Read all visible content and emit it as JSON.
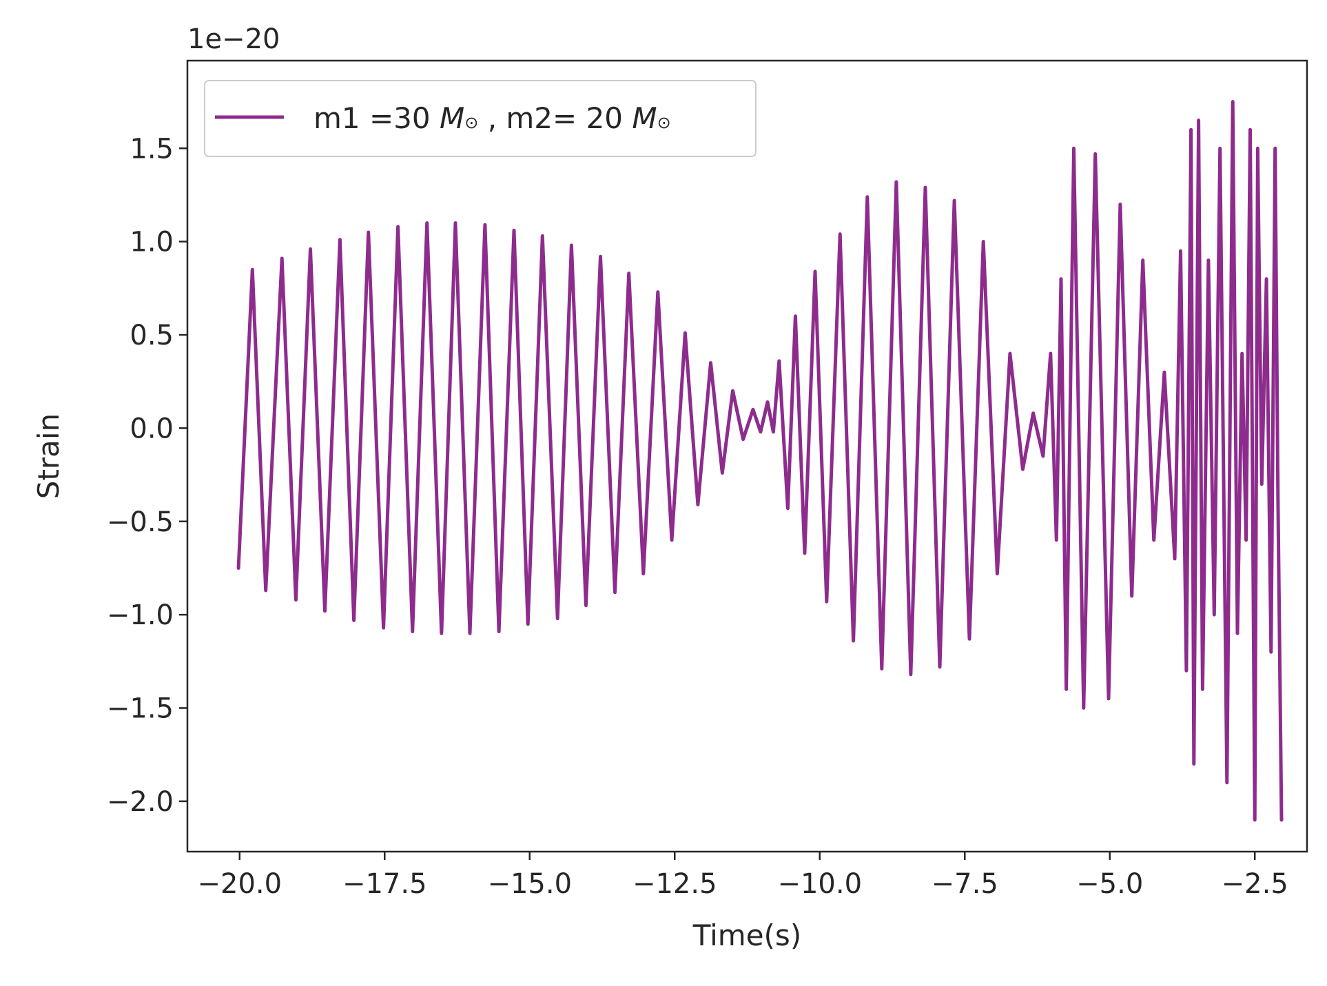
{
  "chart_data": {
    "type": "line",
    "xlabel": "Time(s)",
    "ylabel": "Strain",
    "offset_text": "1e−20",
    "xlim": [
      -20.9,
      -1.6
    ],
    "ylim": [
      -2.27,
      1.97
    ],
    "xticks": [
      -20.0,
      -17.5,
      -15.0,
      -12.5,
      -10.0,
      -7.5,
      -5.0,
      -2.5
    ],
    "xtick_labels": [
      "−20.0",
      "−17.5",
      "−15.0",
      "−12.5",
      "−10.0",
      "−7.5",
      "−5.0",
      "−2.5"
    ],
    "yticks": [
      -2.0,
      -1.5,
      -1.0,
      -0.5,
      0.0,
      0.5,
      1.0,
      1.5
    ],
    "ytick_labels": [
      "−2.0",
      "−1.5",
      "−1.0",
      "−0.5",
      "0.0",
      "0.5",
      "1.0",
      "1.5"
    ],
    "grid": false,
    "legend_position": "upper-left",
    "series": [
      {
        "name_parts": [
          "m1 =30 ",
          "M",
          "⊙",
          " , m2= 20  ",
          "M",
          "⊙"
        ],
        "color": "#8e2c8e",
        "x": [
          -20.02,
          -19.78,
          -19.55,
          -19.27,
          -19.03,
          -18.78,
          -18.53,
          -18.27,
          -18.03,
          -17.78,
          -17.52,
          -17.27,
          -17.02,
          -16.77,
          -16.52,
          -16.28,
          -16.03,
          -15.77,
          -15.53,
          -15.27,
          -15.03,
          -14.78,
          -14.52,
          -14.28,
          -14.03,
          -13.78,
          -13.53,
          -13.29,
          -13.04,
          -12.79,
          -12.55,
          -12.32,
          -12.1,
          -11.88,
          -11.68,
          -11.5,
          -11.32,
          -11.15,
          -11.02,
          -10.9,
          -10.8,
          -10.7,
          -10.55,
          -10.42,
          -10.26,
          -10.08,
          -9.88,
          -9.65,
          -9.42,
          -9.18,
          -8.93,
          -8.68,
          -8.43,
          -8.18,
          -7.93,
          -7.68,
          -7.42,
          -7.18,
          -6.94,
          -6.72,
          -6.5,
          -6.32,
          -6.15,
          -6.02,
          -5.92,
          -5.84,
          -5.75,
          -5.62,
          -5.45,
          -5.25,
          -5.02,
          -4.82,
          -4.62,
          -4.43,
          -4.24,
          -4.06,
          -3.88,
          -3.78,
          -3.68,
          -3.6,
          -3.55,
          -3.47,
          -3.4,
          -3.3,
          -3.2,
          -3.1,
          -2.98,
          -2.88,
          -2.8,
          -2.72,
          -2.65,
          -2.58,
          -2.5,
          -2.45,
          -2.38,
          -2.3,
          -2.22,
          -2.15,
          -2.1,
          -2.04
        ],
        "y": [
          -0.75,
          0.85,
          -0.87,
          0.91,
          -0.92,
          0.96,
          -0.98,
          1.01,
          -1.03,
          1.05,
          -1.07,
          1.08,
          -1.09,
          1.1,
          -1.1,
          1.1,
          -1.1,
          1.09,
          -1.09,
          1.06,
          -1.05,
          1.03,
          -1.02,
          0.98,
          -0.95,
          0.92,
          -0.88,
          0.83,
          -0.78,
          0.73,
          -0.6,
          0.51,
          -0.41,
          0.35,
          -0.24,
          0.2,
          -0.06,
          0.1,
          -0.02,
          0.14,
          -0.02,
          0.36,
          -0.43,
          0.6,
          -0.67,
          0.84,
          -0.93,
          1.04,
          -1.14,
          1.24,
          -1.29,
          1.32,
          -1.32,
          1.29,
          -1.28,
          1.22,
          -1.13,
          1.0,
          -0.78,
          0.4,
          -0.22,
          0.08,
          -0.15,
          0.4,
          -0.6,
          0.8,
          -1.4,
          1.5,
          -1.5,
          1.47,
          -1.45,
          1.2,
          -0.9,
          0.9,
          -0.6,
          0.3,
          -0.7,
          0.95,
          -1.3,
          1.6,
          -1.8,
          1.65,
          -1.4,
          0.9,
          -1.0,
          1.5,
          -1.9,
          1.75,
          -1.1,
          0.4,
          -0.6,
          1.6,
          -2.1,
          1.5,
          -0.3,
          0.8,
          -1.2,
          1.5,
          -0.4,
          -2.1
        ]
      }
    ]
  }
}
